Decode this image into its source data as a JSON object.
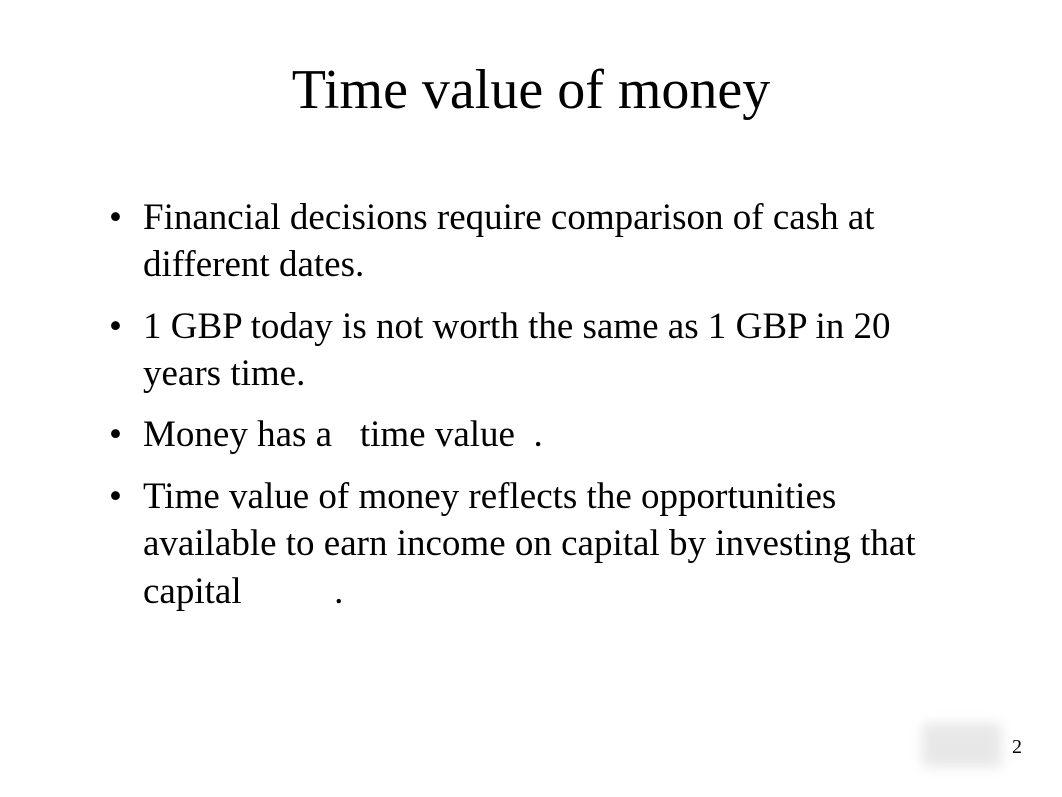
{
  "slide": {
    "title": "Time value of money",
    "bullets": [
      "Financial decisions require comparison of cash at different dates.",
      "1 GBP today is not worth the same as 1 GBP in 20 years time.",
      "Money has a  time value .",
      "Time value of money reflects the opportunities available to earn income on capital by investing that capital   ."
    ],
    "page_number": "2"
  },
  "style": {
    "background_color": "#ffffff",
    "text_color": "#000000",
    "title_fontsize": 56,
    "body_fontsize": 37,
    "font_family": "Times New Roman"
  }
}
